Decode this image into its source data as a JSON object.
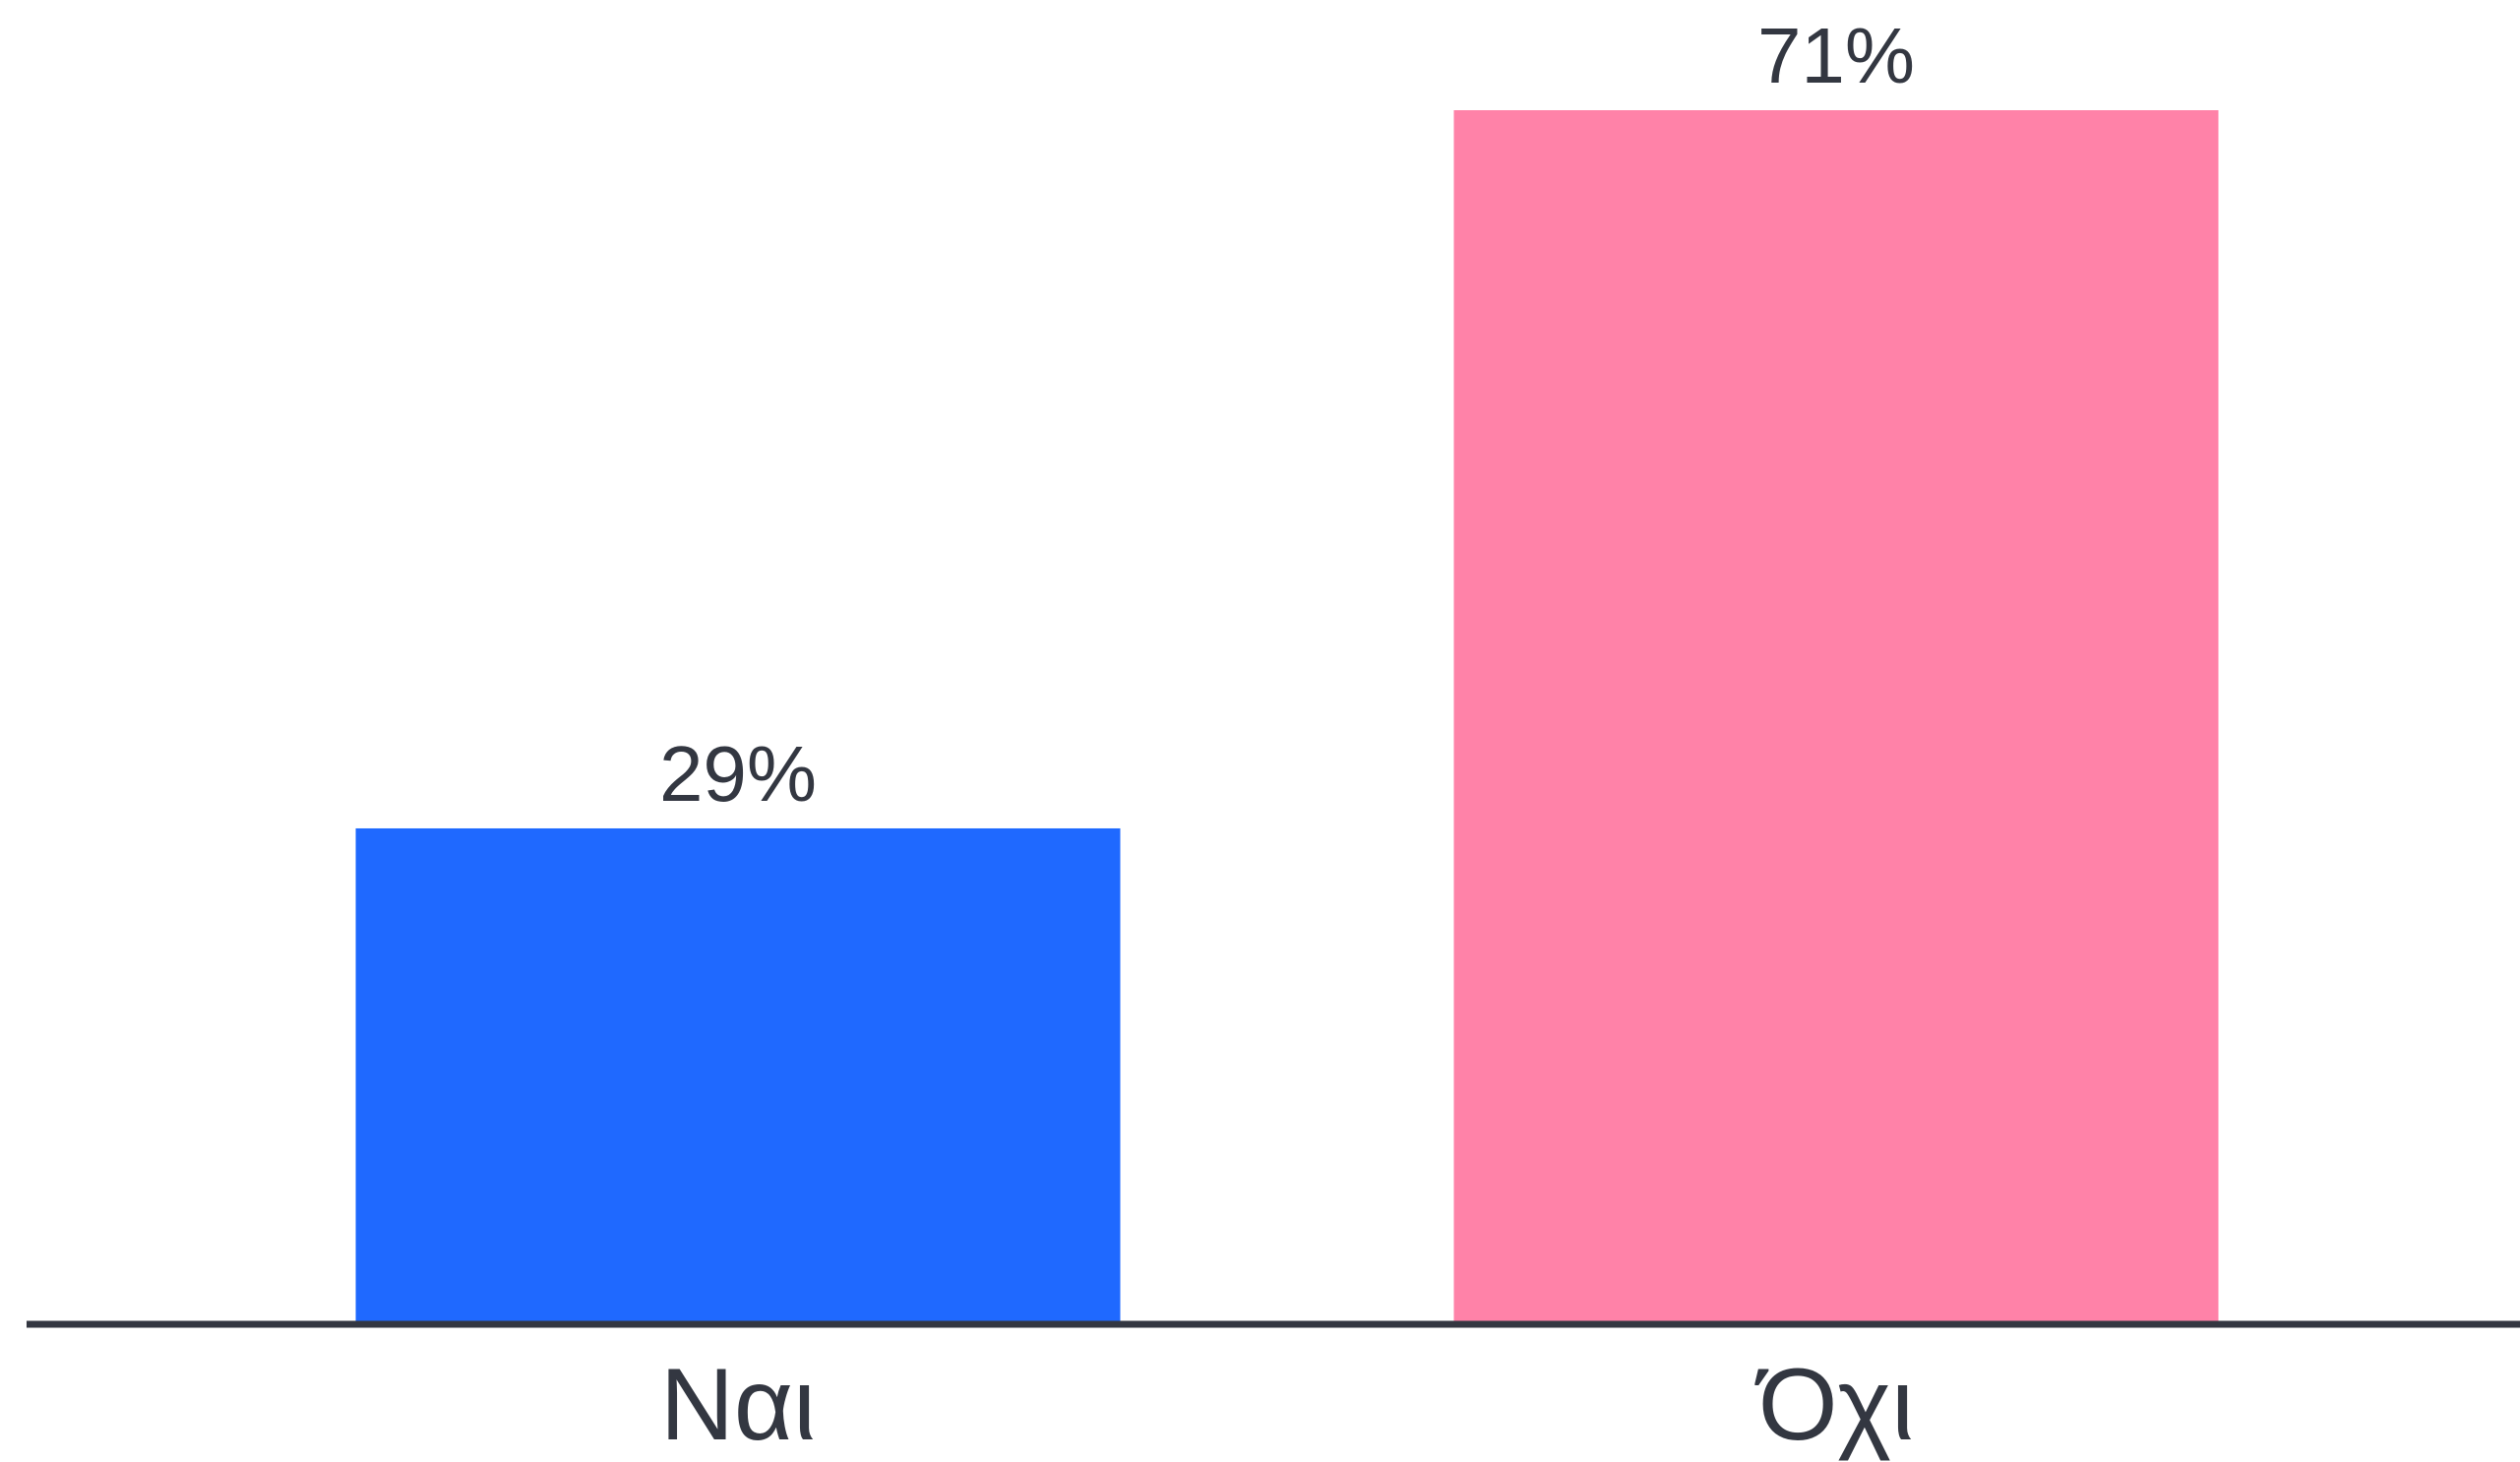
{
  "chart_data": {
    "type": "bar",
    "categories": [
      "Ναι",
      "Όχι"
    ],
    "values": [
      29,
      71
    ],
    "value_labels": [
      "29%",
      "71%"
    ],
    "unit": "%",
    "ylim": [
      0,
      71
    ],
    "grid": false,
    "title": "",
    "xlabel": "",
    "ylabel": "",
    "colors": [
      "#1f69ff",
      "#ff82a8"
    ],
    "axis_color": "#333741",
    "text_color": "#333741"
  }
}
